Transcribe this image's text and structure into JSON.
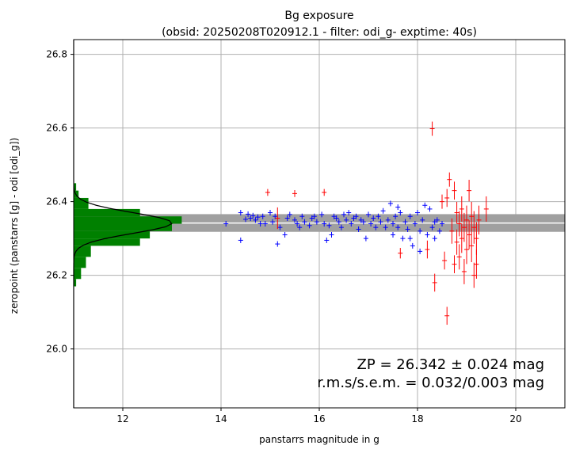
{
  "chart_data": {
    "type": "scatter",
    "title": "Bg exposure",
    "subtitle": "(obsid: 20250208T020912.1 - filter: odi_g- exptime: 40s)",
    "xlabel": "panstarrs magnitude in g",
    "ylabel": "zeropoint (panstarrs [g] - odi [odi_g])",
    "xlim": [
      11.0,
      21.0
    ],
    "ylim": [
      25.84,
      26.84
    ],
    "x_ticks": [
      12,
      14,
      16,
      18,
      20
    ],
    "y_ticks": [
      26.0,
      26.2,
      26.4,
      26.6,
      26.8
    ],
    "x_tick_labels": [
      "12",
      "14",
      "16",
      "18",
      "20"
    ],
    "y_tick_labels": [
      "26.0",
      "26.2",
      "26.4",
      "26.6",
      "26.8"
    ],
    "grid": true,
    "zeropoint": 26.342,
    "zeropoint_band": [
      26.318,
      26.366
    ],
    "annotation_line1": "ZP = 26.342 ± 0.024 mag",
    "annotation_line2": "r.m.s/s.e.m. = 0.032/0.003 mag",
    "histogram": {
      "orientation": "horizontal",
      "bins": [
        {
          "y0": 26.17,
          "y1": 26.19,
          "count": 0.05
        },
        {
          "y0": 26.19,
          "y1": 26.22,
          "count": 0.15
        },
        {
          "y0": 26.22,
          "y1": 26.25,
          "count": 0.25
        },
        {
          "y0": 26.25,
          "y1": 26.28,
          "count": 0.35
        },
        {
          "y0": 26.28,
          "y1": 26.3,
          "count": 1.35
        },
        {
          "y0": 26.3,
          "y1": 26.32,
          "count": 1.55
        },
        {
          "y0": 26.32,
          "y1": 26.34,
          "count": 2.0
        },
        {
          "y0": 26.34,
          "y1": 26.36,
          "count": 2.2
        },
        {
          "y0": 26.36,
          "y1": 26.38,
          "count": 1.35
        },
        {
          "y0": 26.38,
          "y1": 26.41,
          "count": 0.3
        },
        {
          "y0": 26.41,
          "y1": 26.43,
          "count": 0.1
        },
        {
          "y0": 26.43,
          "y1": 26.45,
          "count": 0.05
        }
      ],
      "gauss_mu": 26.342,
      "gauss_sigma": 0.028,
      "gauss_peak": 2.0
    },
    "series": [
      {
        "color": "#0000ff",
        "marker": "plus",
        "points": [
          [
            14.1,
            26.34
          ],
          [
            14.4,
            26.37
          ],
          [
            14.5,
            26.352
          ],
          [
            14.55,
            26.366
          ],
          [
            14.6,
            26.355
          ],
          [
            14.65,
            26.362
          ],
          [
            14.7,
            26.35
          ],
          [
            14.75,
            26.358
          ],
          [
            14.8,
            26.34
          ],
          [
            14.85,
            26.36
          ],
          [
            14.4,
            26.295
          ],
          [
            14.9,
            26.34
          ],
          [
            15.0,
            26.37
          ],
          [
            15.05,
            26.345
          ],
          [
            15.1,
            26.36
          ],
          [
            15.15,
            26.285
          ],
          [
            15.2,
            26.33
          ],
          [
            15.3,
            26.31
          ],
          [
            15.35,
            26.355
          ],
          [
            15.4,
            26.365
          ],
          [
            15.5,
            26.35
          ],
          [
            15.55,
            26.34
          ],
          [
            15.6,
            26.33
          ],
          [
            15.65,
            26.36
          ],
          [
            15.7,
            26.345
          ],
          [
            15.8,
            26.335
          ],
          [
            15.85,
            26.355
          ],
          [
            15.9,
            26.36
          ],
          [
            15.95,
            26.345
          ],
          [
            16.05,
            26.365
          ],
          [
            16.1,
            26.34
          ],
          [
            16.15,
            26.295
          ],
          [
            16.2,
            26.335
          ],
          [
            16.25,
            26.31
          ],
          [
            16.3,
            26.36
          ],
          [
            16.35,
            26.355
          ],
          [
            16.4,
            26.345
          ],
          [
            16.45,
            26.33
          ],
          [
            16.5,
            26.365
          ],
          [
            16.55,
            26.35
          ],
          [
            16.6,
            26.37
          ],
          [
            16.65,
            26.34
          ],
          [
            16.7,
            26.355
          ],
          [
            16.75,
            26.36
          ],
          [
            16.8,
            26.325
          ],
          [
            16.85,
            26.35
          ],
          [
            16.9,
            26.345
          ],
          [
            16.95,
            26.3
          ],
          [
            17.0,
            26.365
          ],
          [
            17.05,
            26.34
          ],
          [
            17.1,
            26.355
          ],
          [
            17.15,
            26.33
          ],
          [
            17.2,
            26.36
          ],
          [
            17.25,
            26.345
          ],
          [
            17.3,
            26.375
          ],
          [
            17.35,
            26.33
          ],
          [
            17.4,
            26.35
          ],
          [
            17.45,
            26.395
          ],
          [
            17.5,
            26.34
          ],
          [
            17.5,
            26.31
          ],
          [
            17.55,
            26.36
          ],
          [
            17.6,
            26.33
          ],
          [
            17.65,
            26.37
          ],
          [
            17.7,
            26.3
          ],
          [
            17.75,
            26.345
          ],
          [
            17.8,
            26.325
          ],
          [
            17.85,
            26.36
          ],
          [
            17.9,
            26.28
          ],
          [
            17.95,
            26.34
          ],
          [
            18.0,
            26.37
          ],
          [
            18.05,
            26.32
          ],
          [
            18.1,
            26.35
          ],
          [
            18.15,
            26.39
          ],
          [
            18.2,
            26.31
          ],
          [
            18.25,
            26.38
          ],
          [
            18.3,
            26.33
          ],
          [
            18.35,
            26.3
          ],
          [
            18.4,
            26.35
          ],
          [
            18.45,
            26.32
          ],
          [
            18.5,
            26.34
          ],
          [
            17.85,
            26.3
          ],
          [
            18.05,
            26.265
          ],
          [
            17.6,
            26.385
          ],
          [
            18.35,
            26.345
          ]
        ]
      },
      {
        "color": "#ff0000",
        "marker": "plus-errorbar",
        "points": [
          [
            14.95,
            26.425,
            0.005
          ],
          [
            15.5,
            26.422,
            0.005
          ],
          [
            16.1,
            26.425,
            0.005
          ],
          [
            15.15,
            26.355,
            0.025
          ],
          [
            17.65,
            26.26,
            0.01
          ],
          [
            18.2,
            26.27,
            0.02
          ],
          [
            18.3,
            26.598,
            0.015
          ],
          [
            18.35,
            26.18,
            0.02
          ],
          [
            18.5,
            26.4,
            0.015
          ],
          [
            18.55,
            26.24,
            0.02
          ],
          [
            18.6,
            26.09,
            0.02
          ],
          [
            18.65,
            26.46,
            0.015
          ],
          [
            18.7,
            26.32,
            0.03
          ],
          [
            18.75,
            26.43,
            0.02
          ],
          [
            18.75,
            26.23,
            0.02
          ],
          [
            18.8,
            26.37,
            0.025
          ],
          [
            18.8,
            26.29,
            0.03
          ],
          [
            18.85,
            26.34,
            0.03
          ],
          [
            18.85,
            26.25,
            0.03
          ],
          [
            18.9,
            26.3,
            0.035
          ],
          [
            18.9,
            26.38,
            0.03
          ],
          [
            18.95,
            26.33,
            0.035
          ],
          [
            18.95,
            26.21,
            0.03
          ],
          [
            19.0,
            26.35,
            0.035
          ],
          [
            19.0,
            26.27,
            0.035
          ],
          [
            19.05,
            26.31,
            0.035
          ],
          [
            19.05,
            26.43,
            0.025
          ],
          [
            19.1,
            26.28,
            0.04
          ],
          [
            19.1,
            26.36,
            0.035
          ],
          [
            19.15,
            26.2,
            0.03
          ],
          [
            19.15,
            26.33,
            0.04
          ],
          [
            19.2,
            26.3,
            0.04
          ],
          [
            19.2,
            26.23,
            0.035
          ],
          [
            19.25,
            26.35,
            0.035
          ],
          [
            19.4,
            26.38,
            0.03
          ],
          [
            18.6,
            26.41,
            0.02
          ]
        ]
      }
    ]
  }
}
